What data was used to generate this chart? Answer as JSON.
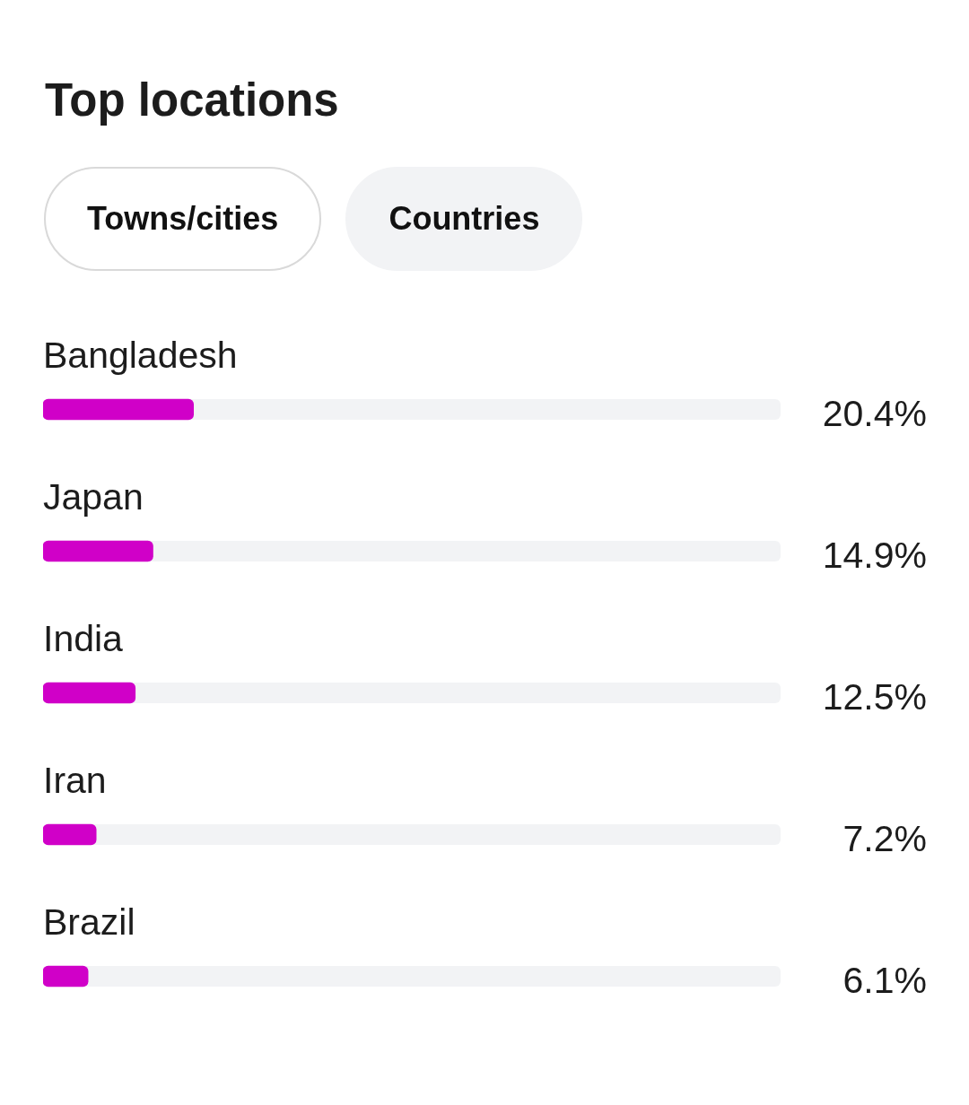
{
  "chart_data": {
    "type": "bar",
    "title": "Top locations",
    "orientation": "horizontal",
    "categories": [
      "Bangladesh",
      "Japan",
      "India",
      "Iran",
      "Brazil"
    ],
    "values": [
      20.4,
      14.9,
      12.5,
      7.2,
      6.1
    ],
    "value_labels": [
      "20.4%",
      "14.9%",
      "12.5%",
      "7.2%",
      "6.1%"
    ],
    "color": "#d000c8",
    "xlim": [
      0,
      100
    ],
    "tick_labels": false,
    "annotations": [
      "Towns/cities",
      "Countries"
    ]
  }
}
